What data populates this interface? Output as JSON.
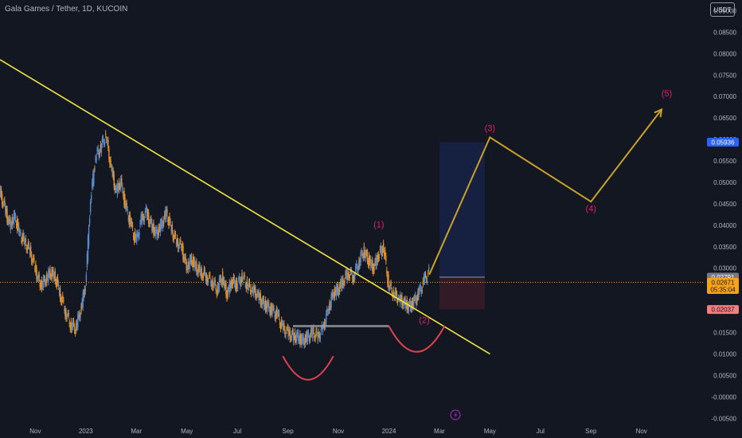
{
  "header": {
    "title": "Gala Games / Tether, 1D, KUCOIN",
    "currency_button": "USDT"
  },
  "chart_data": {
    "type": "line",
    "title": "Gala Games / Tether, 1D, KUCOIN",
    "ylim": [
      -0.0055,
      0.0925
    ],
    "y_ticks": [
      "0.09000",
      "0.08500",
      "0.08000",
      "0.07500",
      "0.07000",
      "0.06500",
      "0.06000",
      "0.05500",
      "0.05000",
      "0.04500",
      "0.04000",
      "0.03500",
      "0.03000",
      "0.02500",
      "0.02000",
      "0.01500",
      "0.01000",
      "0.00500",
      "-0.00000",
      "-0.00500"
    ],
    "y_tick_values": [
      0.09,
      0.085,
      0.08,
      0.075,
      0.07,
      0.065,
      0.06,
      0.055,
      0.05,
      0.045,
      0.04,
      0.035,
      0.03,
      0.025,
      0.02,
      0.015,
      0.01,
      0.005,
      0.0,
      -0.005
    ],
    "x_ticks": [
      "Nov",
      "2023",
      "Mar",
      "May",
      "Jul",
      "Sep",
      "Nov",
      "2024",
      "Mar",
      "May",
      "Jul",
      "Sep",
      "Nov"
    ],
    "x_tick_values": [
      0,
      2,
      4,
      6,
      8,
      10,
      12,
      14,
      16,
      18,
      20,
      22,
      24
    ],
    "xlim": [
      -1.4,
      26.5
    ],
    "grid": false,
    "series": [
      {
        "x": [
          -1.4,
          -1.2,
          -1.0,
          -0.8,
          -0.6,
          -0.4,
          -0.2,
          0.0,
          0.2,
          0.4,
          0.6,
          0.8,
          1.0,
          1.2,
          1.4,
          1.6,
          1.8,
          2.0,
          2.2,
          2.4,
          2.6,
          2.8,
          3.0,
          3.2,
          3.4,
          3.6,
          3.8,
          4.0,
          4.2,
          4.4,
          4.6,
          4.8,
          5.0,
          5.2,
          5.4,
          5.6,
          5.8,
          6.0,
          6.2,
          6.4,
          6.6,
          6.8,
          7.0,
          7.2,
          7.4,
          7.6,
          7.8,
          8.0,
          8.2,
          8.4,
          8.6,
          8.8,
          9.0,
          9.2,
          9.4,
          9.6,
          9.8,
          10.0,
          10.2,
          10.4,
          10.6,
          10.8,
          11.0,
          11.2,
          11.4,
          11.6,
          11.8,
          12.0,
          12.2,
          12.4,
          12.6,
          12.8,
          13.0,
          13.2,
          13.4,
          13.6,
          13.8,
          14.0,
          14.2,
          14.4,
          14.6,
          14.8,
          15.0,
          15.2,
          15.4,
          15.6
        ],
        "values": [
          0.048,
          0.044,
          0.04,
          0.042,
          0.038,
          0.036,
          0.034,
          0.03,
          0.026,
          0.027,
          0.029,
          0.028,
          0.024,
          0.02,
          0.017,
          0.016,
          0.02,
          0.026,
          0.046,
          0.056,
          0.058,
          0.061,
          0.054,
          0.048,
          0.05,
          0.044,
          0.04,
          0.036,
          0.041,
          0.043,
          0.04,
          0.038,
          0.04,
          0.043,
          0.039,
          0.036,
          0.035,
          0.03,
          0.032,
          0.03,
          0.029,
          0.028,
          0.027,
          0.025,
          0.028,
          0.024,
          0.027,
          0.026,
          0.028,
          0.026,
          0.025,
          0.024,
          0.022,
          0.021,
          0.02,
          0.019,
          0.016,
          0.015,
          0.014,
          0.014,
          0.013,
          0.014,
          0.015,
          0.014,
          0.016,
          0.02,
          0.024,
          0.025,
          0.027,
          0.029,
          0.028,
          0.031,
          0.034,
          0.032,
          0.03,
          0.033,
          0.035,
          0.026,
          0.024,
          0.023,
          0.022,
          0.021,
          0.022,
          0.024,
          0.027,
          0.029
        ]
      }
    ],
    "projection": {
      "x": [
        15.6,
        18.0,
        22.0,
        24.8
      ],
      "values": [
        0.0285,
        0.0605,
        0.0455,
        0.067
      ],
      "color": "#c9a227"
    },
    "trendline": {
      "x": [
        -1.4,
        18.0
      ],
      "values": [
        0.0786,
        0.01
      ],
      "color": "#f0e442"
    },
    "support_line": {
      "x": [
        10.2,
        14.0
      ],
      "values": [
        0.0165,
        0.0165
      ],
      "color": "#9598a1"
    },
    "arcs": [
      {
        "x": [
          9.8,
          11.8
        ],
        "low": 0.004,
        "top": 0.0095,
        "color": "#e0424f"
      },
      {
        "x": [
          14.0,
          16.2
        ],
        "low": 0.0105,
        "top": 0.0165,
        "color": "#e0424f"
      }
    ],
    "position_box": {
      "x": [
        16.0,
        17.8
      ],
      "entry": 0.0279,
      "target": 0.0594,
      "stop": 0.0204
    },
    "current_price_line": 0.0267,
    "annotations": [
      {
        "label": "(1)",
        "x": 13.6,
        "y": 0.0395
      },
      {
        "label": "(2)",
        "x": 15.4,
        "y": 0.0172
      },
      {
        "label": "(3)",
        "x": 18.0,
        "y": 0.062
      },
      {
        "label": "(4)",
        "x": 22.0,
        "y": 0.0432
      },
      {
        "label": "(5)",
        "x": 25.0,
        "y": 0.07
      }
    ],
    "price_badges": [
      {
        "label": "0.05936",
        "value": 0.05936,
        "bg": "#2962ff",
        "fg": "#ffffff"
      },
      {
        "label": "0.02791",
        "value": 0.02791,
        "bg": "#787b86",
        "fg": "#ffffff"
      },
      {
        "label": "0.02671",
        "value": 0.02671,
        "bg": "#f7a21b",
        "fg": "#131722",
        "sub": "05:35:04"
      },
      {
        "label": "0.02037",
        "value": 0.02037,
        "bg": "#f77c80",
        "fg": "#131722"
      }
    ]
  },
  "colors": {
    "background": "#131722",
    "candle_up": "#5b8ac9",
    "candle_down": "#e0912f",
    "text": "#b2b5be"
  }
}
